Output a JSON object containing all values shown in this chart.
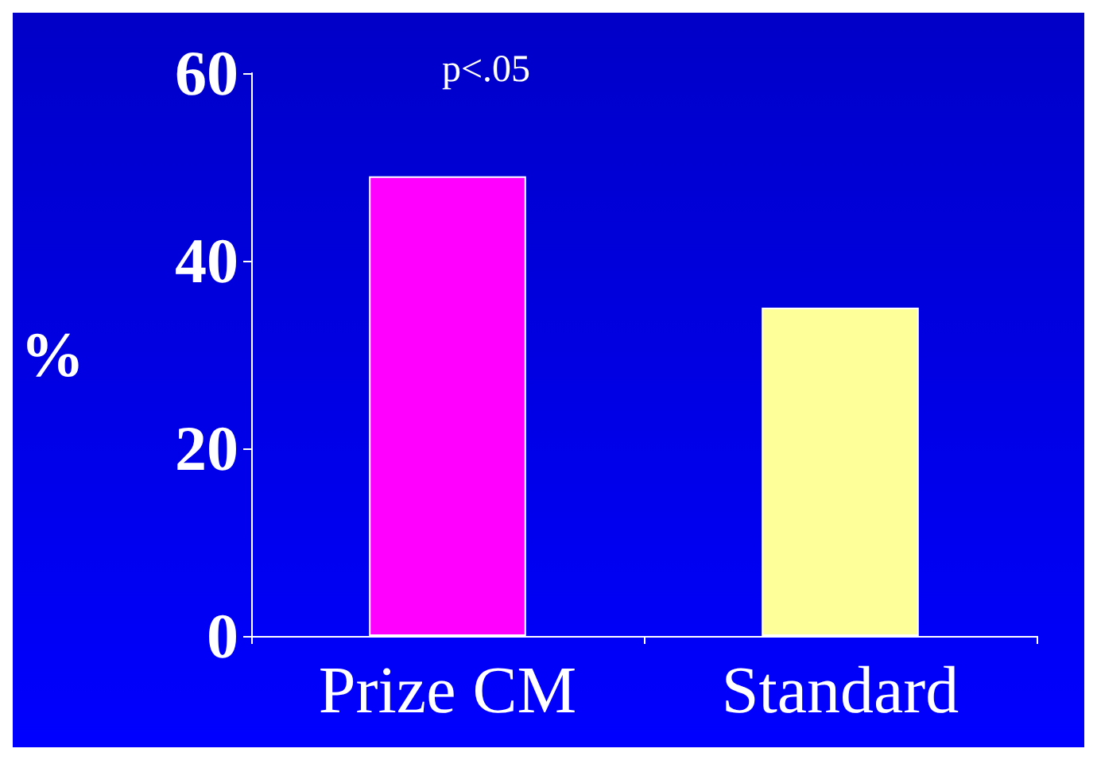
{
  "chart_data": {
    "type": "bar",
    "ylabel": "%",
    "categories": [
      "Prize CM",
      "Standard"
    ],
    "values": [
      49,
      35
    ],
    "colors": [
      "#ff00ff",
      "#ffff99"
    ],
    "ylim": [
      0,
      60
    ],
    "yticks": [
      0,
      20,
      40,
      60
    ],
    "annotations": [
      "p<.05"
    ]
  }
}
